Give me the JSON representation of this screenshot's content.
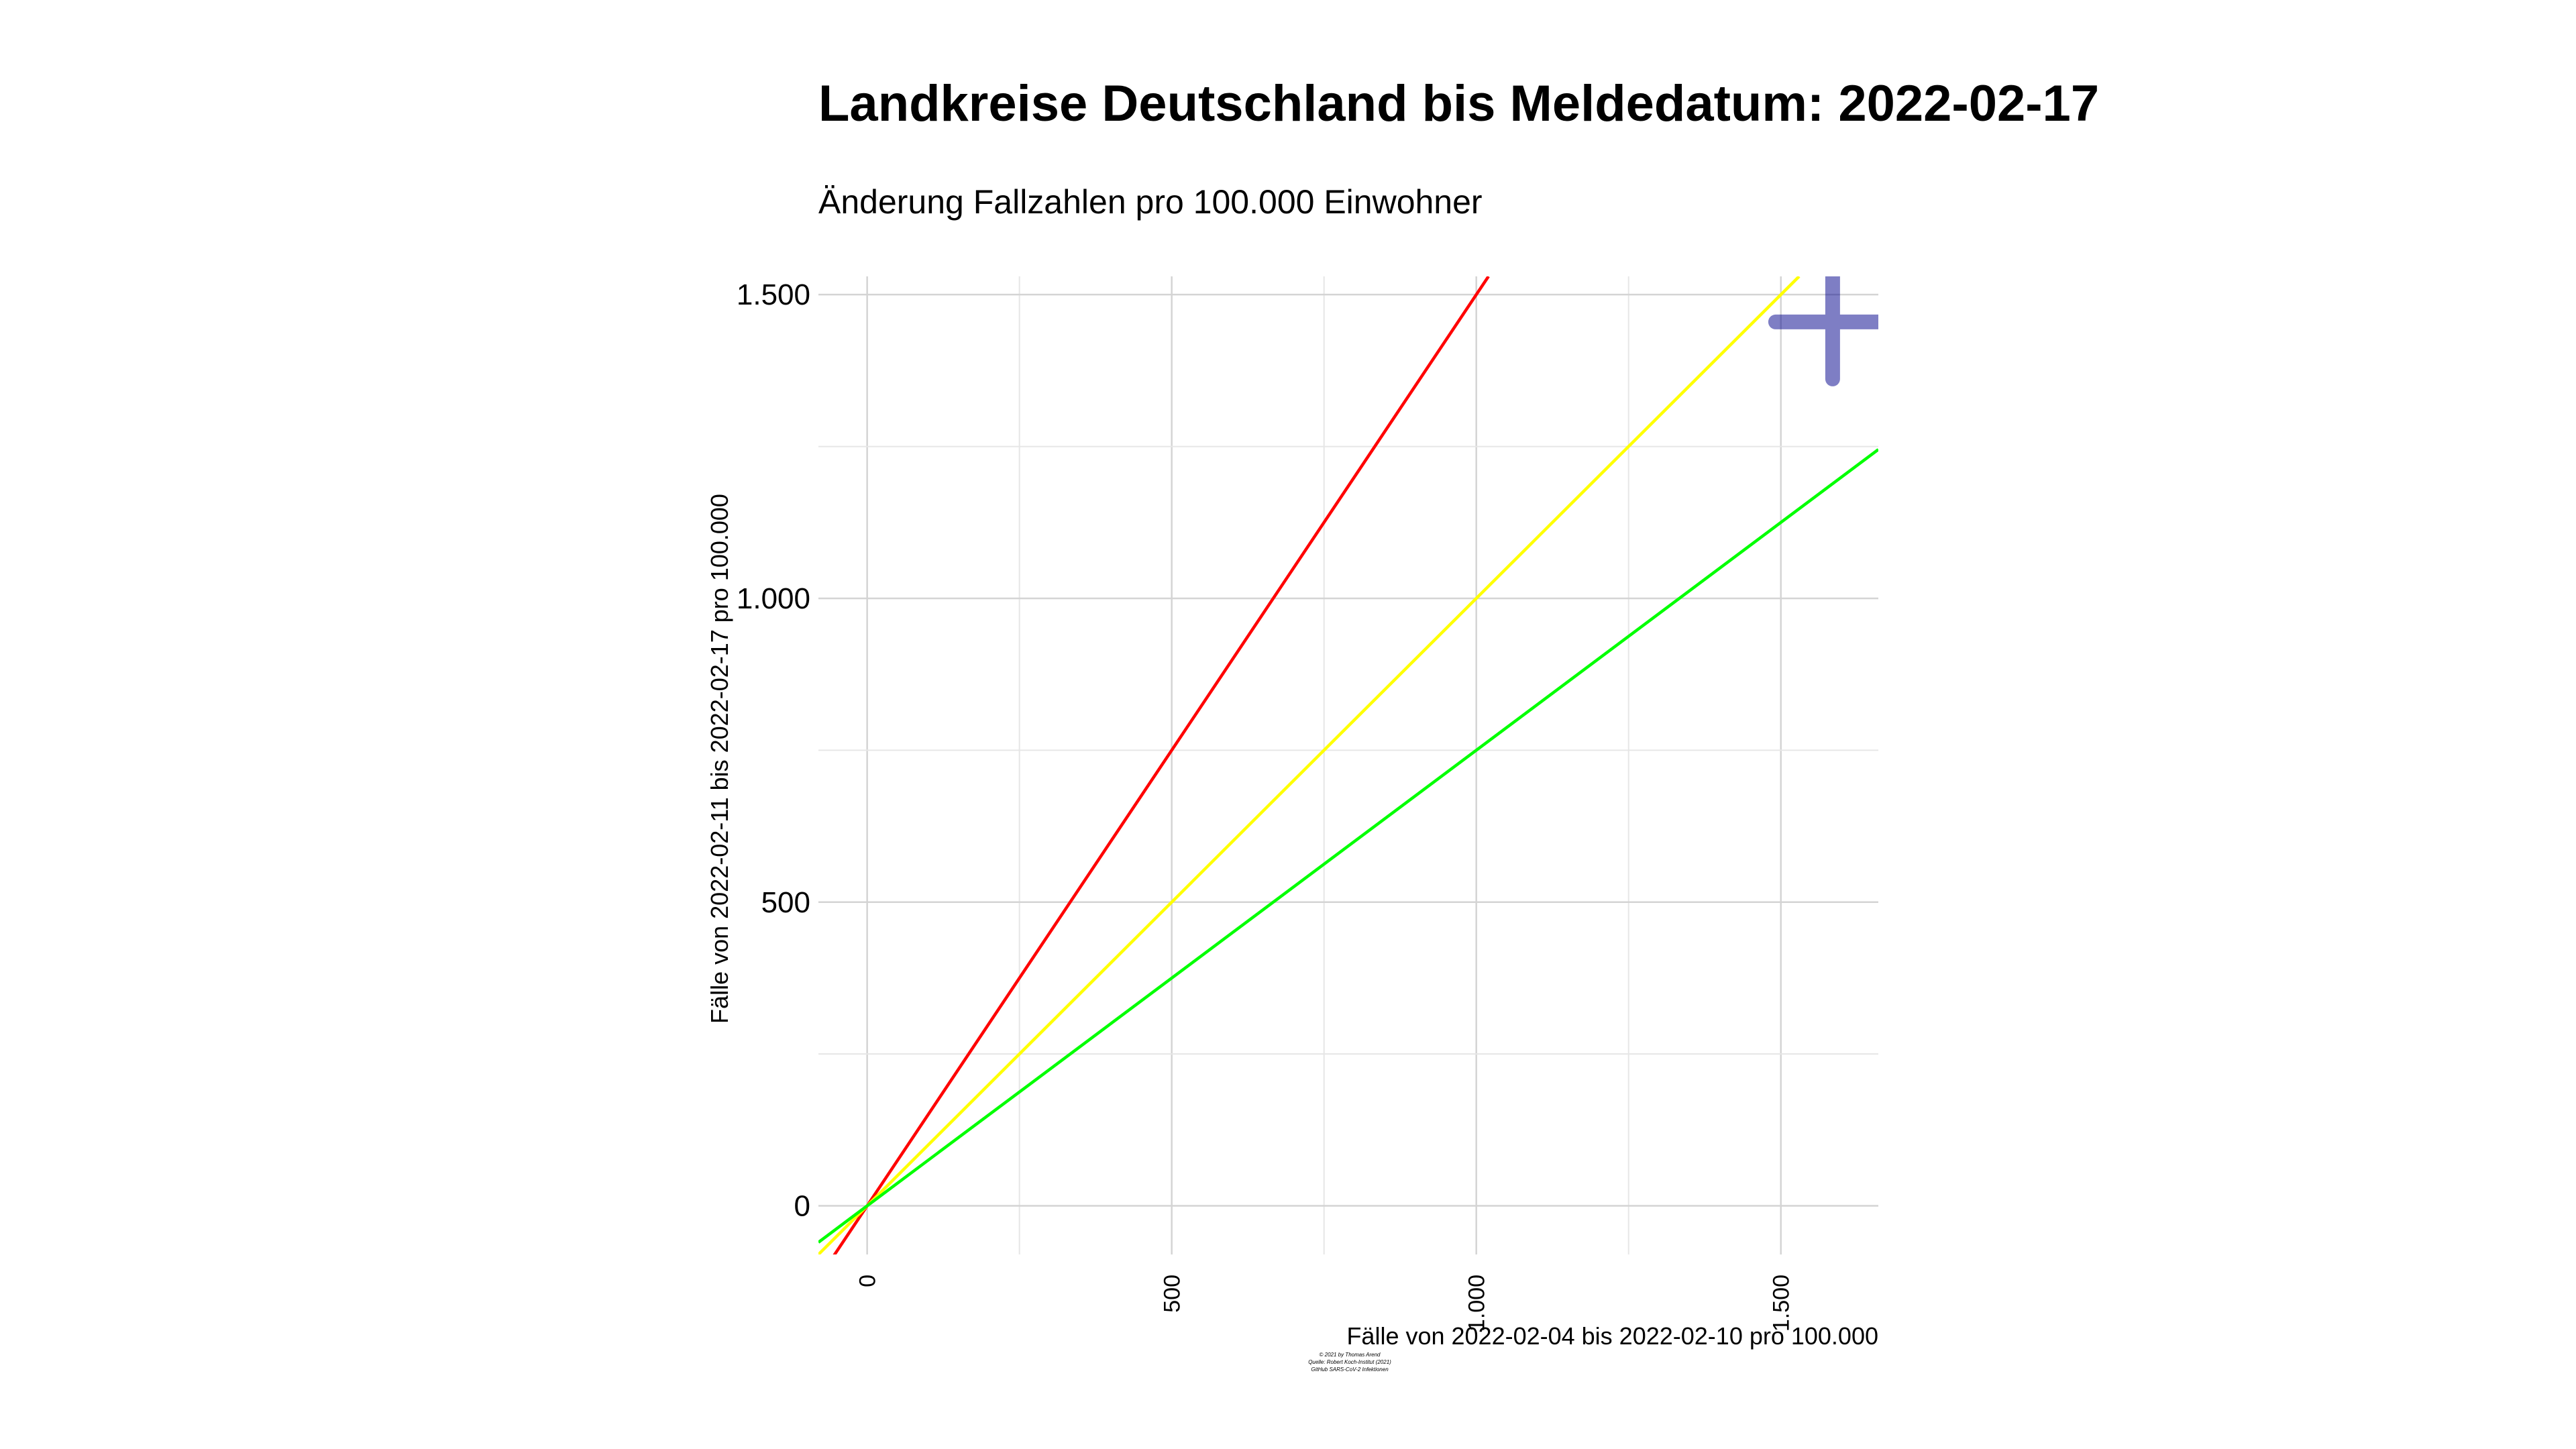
{
  "chart_data": {
    "type": "line",
    "title": "Landkreise Deutschland bis Meldedatum: 2022-02-17",
    "subtitle": "Änderung Fallzahlen pro 100.000 Einwohner",
    "xlabel": "Fälle von 2022-02-04 bis 2022-02-10 pro 100.000",
    "ylabel": "Fälle von 2022-02-11 bis 2022-02-17 pro 100.000",
    "xlim": [
      -80,
      1660
    ],
    "ylim": [
      -80,
      1530
    ],
    "x_ticks": [
      {
        "value": 0,
        "label": "0"
      },
      {
        "value": 500,
        "label": "500"
      },
      {
        "value": 1000,
        "label": "1.000"
      },
      {
        "value": 1500,
        "label": "1.500"
      }
    ],
    "y_ticks": [
      {
        "value": 0,
        "label": "0"
      },
      {
        "value": 500,
        "label": "500"
      },
      {
        "value": 1000,
        "label": "1.000"
      },
      {
        "value": 1500,
        "label": "1.500"
      }
    ],
    "grid": true,
    "series": [
      {
        "color": "#ff0000",
        "slope": 1.5,
        "x": [
          -80,
          1020
        ],
        "y": [
          -120,
          1530
        ]
      },
      {
        "color": "#ffff00",
        "slope": 1.0,
        "x": [
          -80,
          1530
        ],
        "y": [
          -80,
          1530
        ]
      },
      {
        "color": "#00ff00",
        "slope": 0.75,
        "x": [
          -80,
          1660
        ],
        "y": [
          -60,
          1245
        ]
      }
    ],
    "markers": [
      {
        "x": 1585,
        "y": 1455,
        "shape": "plus",
        "color": "#00008b"
      }
    ],
    "credits": [
      "© 2021 by Thomas Arend",
      "Quelle: Robert Koch-Institut (2021)",
      "GitHub SARS-CoV-2 Infektionen"
    ]
  }
}
